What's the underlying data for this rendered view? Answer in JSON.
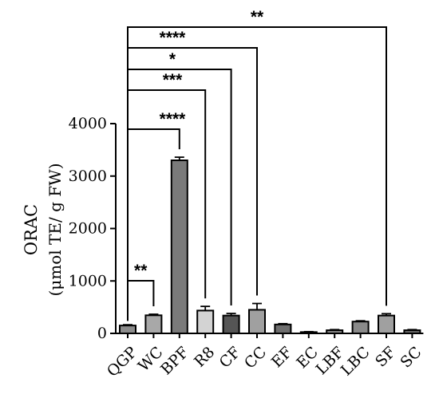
{
  "chart_data": {
    "type": "bar",
    "ylabel_line1": "ORAC",
    "ylabel_line2": "(μmol TE/ g FW)",
    "ylim": [
      0,
      4000
    ],
    "yticks": [
      0,
      1000,
      2000,
      3000,
      4000
    ],
    "grid": false,
    "categories": [
      "QGP",
      "WC",
      "BPF",
      "R8",
      "CF",
      "CC",
      "EF",
      "EC",
      "LBF",
      "LBC",
      "SF",
      "SC"
    ],
    "values": [
      150,
      345,
      3300,
      435,
      340,
      450,
      170,
      25,
      60,
      225,
      340,
      60
    ],
    "errors": [
      15,
      20,
      60,
      80,
      40,
      120,
      15,
      8,
      12,
      15,
      35,
      12
    ],
    "bar_colors": [
      "#8c8c8c",
      "#a8a8a8",
      "#7a7a7a",
      "#d3d3d3",
      "#555555",
      "#a0a0a0",
      "#6e6e6e",
      "#999999",
      "#888888",
      "#8a8a8a",
      "#a0a0a0",
      "#6a6a6a"
    ],
    "comparisons": [
      {
        "from": "QGP",
        "to": "WC",
        "label": "**"
      },
      {
        "from": "QGP",
        "to": "BPF",
        "label": "****"
      },
      {
        "from": "QGP",
        "to": "R8",
        "label": "***"
      },
      {
        "from": "QGP",
        "to": "CF",
        "label": "*"
      },
      {
        "from": "QGP",
        "to": "CC",
        "label": "****"
      },
      {
        "from": "QGP",
        "to": "SF",
        "label": "**"
      }
    ]
  }
}
